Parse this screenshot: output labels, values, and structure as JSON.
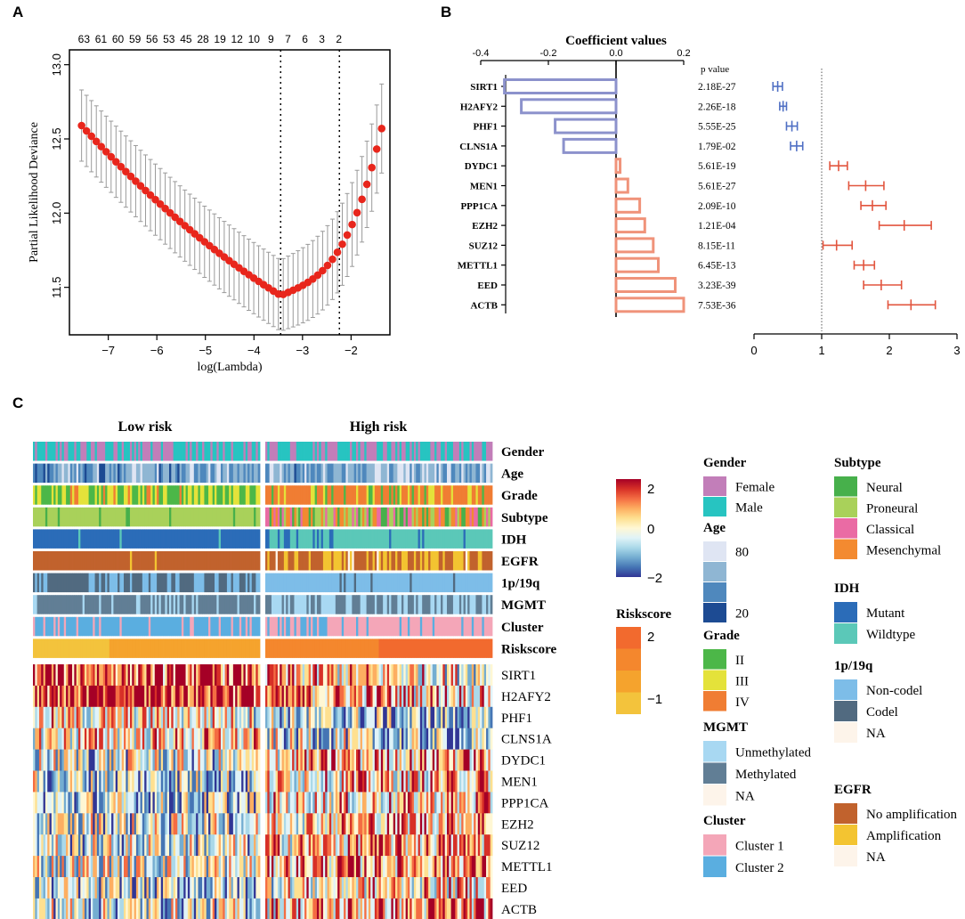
{
  "panel_labels": [
    "A",
    "B",
    "C"
  ],
  "colors": {
    "blue_bar": "#8c92cc",
    "salmon_bar": "#f0937a",
    "blue_err": "#4f6fc4",
    "red_err": "#e2553e",
    "lasso_point": "#e8261c",
    "lasso_err": "#9a9a9a"
  },
  "chart_data": [
    {
      "id": "A",
      "type": "line",
      "title": "",
      "xlabel": "log(Lambda)",
      "ylabel": "Partial Likelihood Deviance",
      "xlim": [
        -7.8,
        -1.2
      ],
      "ylim": [
        11.18,
        13.1
      ],
      "x_ticks": [
        -7,
        -6,
        -5,
        -4,
        -3,
        -2
      ],
      "y_ticks": [
        11.5,
        12.0,
        12.5,
        13.0
      ],
      "x_tick_labels": [
        "−7",
        "−6",
        "−5",
        "−4",
        "−3",
        "−2"
      ],
      "y_tick_labels": [
        "11.5",
        "12.0",
        "12.5",
        "13.0"
      ],
      "top_axis_labels": [
        "63",
        "61",
        "60",
        "59",
        "56",
        "53",
        "45",
        "28",
        "19",
        "12",
        "10",
        "9",
        "7",
        "6",
        "3",
        "2"
      ],
      "top_axis_positions": [
        -7.5,
        -7.15,
        -6.8,
        -6.45,
        -6.1,
        -5.75,
        -5.4,
        -5.05,
        -4.7,
        -4.35,
        -4.0,
        -3.65,
        -3.3,
        -2.95,
        -2.6,
        -2.25
      ],
      "vlines": [
        -3.45,
        -2.24
      ],
      "x_start": -7.55,
      "x_end": -1.37,
      "n_points": 62,
      "curve": {
        "start": 12.59,
        "min_x": -3.45,
        "min_y": 11.445,
        "end": 12.57
      },
      "err_halfwidth": 0.24
    },
    {
      "id": "B",
      "type": "bar",
      "title": "Coefficient values",
      "orientation": "horizontal",
      "categories": [
        "SIRT1",
        "H2AFY2",
        "PHF1",
        "CLNS1A",
        "DYDC1",
        "MEN1",
        "PPP1CA",
        "EZH2",
        "SUZ12",
        "METTL1",
        "EED",
        "ACTB"
      ],
      "values": [
        -0.33,
        -0.28,
        -0.18,
        -0.155,
        0.012,
        0.035,
        0.07,
        0.085,
        0.11,
        0.125,
        0.175,
        0.2
      ],
      "xlim": [
        -0.4,
        0.2
      ],
      "x_ticks": [
        -0.4,
        -0.2,
        0.0,
        0.2
      ],
      "x_tick_labels": [
        "-0.4",
        "-0.2",
        "0.0",
        "0.2"
      ],
      "pvalue_header": "p value",
      "pvalues": [
        "2.18E-27",
        "2.26E-18",
        "5.55E-25",
        "1.79E-02",
        "5.61E-19",
        "5.61E-27",
        "2.09E-10",
        "1.21E-04",
        "8.15E-11",
        "6.45E-13",
        "3.23E-39",
        "7.53E-36"
      ],
      "forest": {
        "type": "scatter",
        "xlim": [
          0,
          3
        ],
        "x_ticks": [
          0,
          1,
          2,
          3
        ],
        "x_tick_labels": [
          "0",
          "1",
          "2",
          "3"
        ],
        "ref_line": 1,
        "hr": [
          0.35,
          0.43,
          0.56,
          0.63,
          1.25,
          1.65,
          1.75,
          2.22,
          1.22,
          1.62,
          1.88,
          2.32
        ],
        "lo": [
          0.28,
          0.38,
          0.48,
          0.54,
          1.12,
          1.4,
          1.58,
          1.85,
          1.02,
          1.48,
          1.62,
          1.98
        ],
        "hi": [
          0.42,
          0.48,
          0.64,
          0.72,
          1.38,
          1.92,
          1.95,
          2.62,
          1.45,
          1.78,
          2.18,
          2.68
        ]
      }
    },
    {
      "id": "C",
      "type": "heatmap",
      "group_labels": [
        "Low risk",
        "High risk"
      ],
      "annotation_rows": [
        "Gender",
        "Age",
        "Grade",
        "Subtype",
        "IDH",
        "EGFR",
        "1p/19q",
        "MGMT",
        "Cluster",
        "Riskscore"
      ],
      "gene_rows": [
        "SIRT1",
        "H2AFY2",
        "PHF1",
        "CLNS1A",
        "DYDC1",
        "MEN1",
        "PPP1CA",
        "EZH2",
        "SUZ12",
        "METTL1",
        "EED",
        "ACTB"
      ],
      "expression_scale": {
        "ticks": [
          "2",
          "0",
          "−2"
        ],
        "colors": [
          "#313695",
          "#4575b4",
          "#74add1",
          "#abd9e9",
          "#e0f3f8",
          "#fff7d4",
          "#fee090",
          "#fdae61",
          "#f46d43",
          "#d73027",
          "#a50026"
        ]
      },
      "riskscore_scale": {
        "title": "Riskscore",
        "ticks": [
          "2",
          "−1"
        ],
        "colors": [
          "#f26a2e",
          "#f4872d",
          "#f5a32d",
          "#f3c33c"
        ]
      }
    }
  ],
  "legends": {
    "gender": {
      "title": "Gender",
      "items": [
        {
          "label": "Female",
          "color": "#c27eb9"
        },
        {
          "label": "Male",
          "color": "#27c4c1"
        }
      ]
    },
    "age": {
      "title": "Age",
      "items": [
        {
          "label": "80",
          "color": "#dfe5f3"
        },
        {
          "label": "",
          "color": "#8fb6d3"
        },
        {
          "label": "",
          "color": "#4f88bd"
        },
        {
          "label": "20",
          "color": "#1d4b93"
        }
      ]
    },
    "grade": {
      "title": "Grade",
      "items": [
        {
          "label": "II",
          "color": "#4cb748"
        },
        {
          "label": "III",
          "color": "#e4e23a"
        },
        {
          "label": "IV",
          "color": "#f07d33"
        }
      ]
    },
    "mgmt": {
      "title": "MGMT",
      "items": [
        {
          "label": "Unmethylated",
          "color": "#a8d8f2"
        },
        {
          "label": "Methylated",
          "color": "#617e95"
        },
        {
          "label": "NA",
          "color": "#fdf4ea"
        }
      ]
    },
    "cluster": {
      "title": "Cluster",
      "items": [
        {
          "label": "Cluster 1",
          "color": "#f4a6b8"
        },
        {
          "label": "Cluster 2",
          "color": "#5aaee0"
        }
      ]
    },
    "subtype": {
      "title": "Subtype",
      "items": [
        {
          "label": "Neural",
          "color": "#47b04b"
        },
        {
          "label": "Proneural",
          "color": "#a9d15a"
        },
        {
          "label": "Classical",
          "color": "#ea6ba4"
        },
        {
          "label": "Mesenchymal",
          "color": "#f38a30"
        }
      ]
    },
    "idh": {
      "title": "IDH",
      "items": [
        {
          "label": "Mutant",
          "color": "#2b6cb8"
        },
        {
          "label": "Wildtype",
          "color": "#5bc8b8"
        }
      ]
    },
    "p19q": {
      "title": "1p/19q",
      "items": [
        {
          "label": "Non-codel",
          "color": "#7dbde8"
        },
        {
          "label": "Codel",
          "color": "#516a80"
        },
        {
          "label": "NA",
          "color": "#fdf4ea"
        }
      ]
    },
    "egfr": {
      "title": "EGFR",
      "items": [
        {
          "label": "No amplification",
          "color": "#c1622d"
        },
        {
          "label": "Amplification",
          "color": "#f3c431"
        },
        {
          "label": "NA",
          "color": "#fdf4ea"
        }
      ]
    }
  }
}
